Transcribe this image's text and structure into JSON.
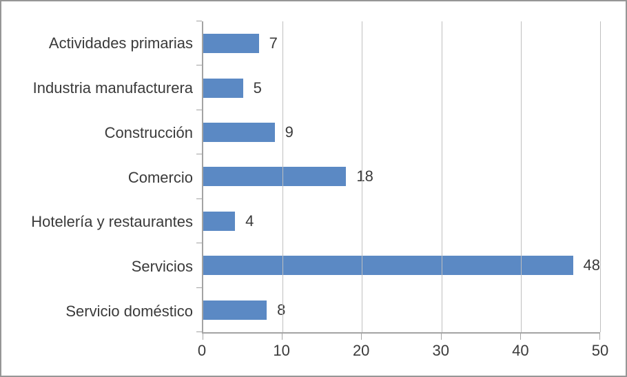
{
  "chart_data": {
    "type": "bar",
    "orientation": "horizontal",
    "title": "",
    "xlabel": "",
    "ylabel": "",
    "categories": [
      "Actividades primarias",
      "Industria manufacturera",
      "Construcción",
      "Comercio",
      "Hotelería y restaurantes",
      "Servicios",
      "Servicio doméstico"
    ],
    "values": [
      7,
      5,
      9,
      18,
      4,
      48,
      8
    ],
    "data_labels_shown": true,
    "x_tick_labels": [
      "0",
      "10",
      "20",
      "30",
      "40",
      "50"
    ],
    "xlim": [
      0,
      50
    ],
    "grid": "vertical gridlines at each x tick",
    "legend": "none",
    "colors": {
      "bar": "#5b89c4",
      "axis": "#a3a3a3",
      "gridline": "#bfbfbf",
      "text": "#3a3a3a",
      "frame_border": "#969696",
      "background": "#ffffff"
    }
  }
}
